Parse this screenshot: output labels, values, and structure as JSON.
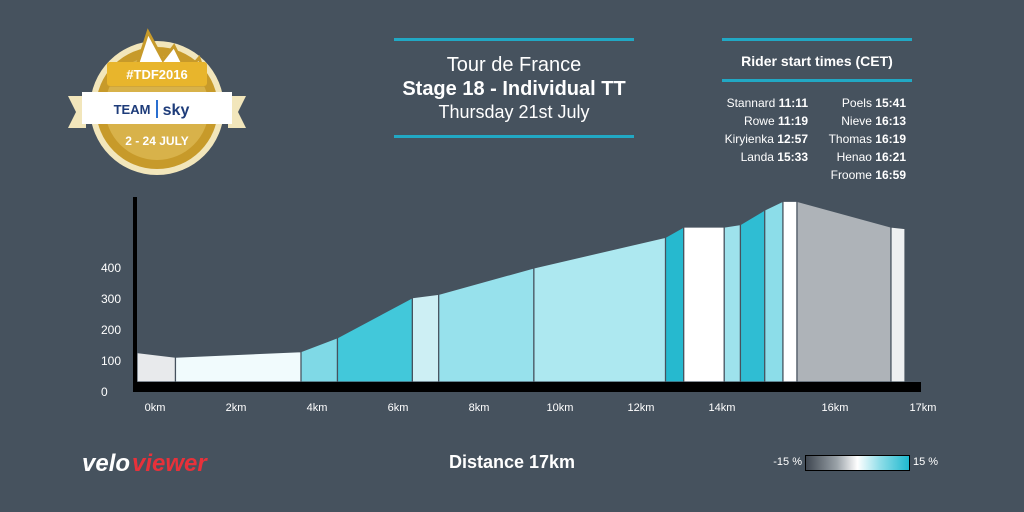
{
  "badge": {
    "hashtag": "#TDF2016",
    "team": "TEAM",
    "brand": "sky",
    "dates": "2 - 24 JULY"
  },
  "header": {
    "title": "Tour de France",
    "stage": "Stage 18 - Individual TT",
    "date": "Thursday 21st July"
  },
  "start_times": {
    "title": "Rider start times (CET)",
    "left": [
      {
        "rider": "Stannard",
        "time": "11:11"
      },
      {
        "rider": "Rowe",
        "time": "11:19"
      },
      {
        "rider": "Kiryienka",
        "time": "12:57"
      },
      {
        "rider": "Landa",
        "time": "15:33"
      }
    ],
    "right": [
      {
        "rider": "Poels",
        "time": "15:41"
      },
      {
        "rider": "Nieve",
        "time": "16:13"
      },
      {
        "rider": "Thomas",
        "time": "16:19"
      },
      {
        "rider": "Henao",
        "time": "16:21"
      },
      {
        "rider": "Froome",
        "time": "16:59"
      }
    ]
  },
  "logo": {
    "part1": "velo",
    "part2": "viewer"
  },
  "distance_label": "Distance 17km",
  "legend": {
    "min": "-15 %",
    "max": "15 %"
  },
  "colors": {
    "background": "#46525e",
    "accent": "#21a8c4",
    "logo_red": "#e8313a"
  },
  "chart_data": {
    "type": "area",
    "title": "",
    "xlabel": "",
    "ylabel": "",
    "x_unit": "km",
    "xlim": [
      0,
      17
    ],
    "ylim": [
      0,
      470
    ],
    "x_ticks": [
      0,
      2,
      4,
      6,
      8,
      10,
      12,
      14,
      16,
      17
    ],
    "x_tick_labels": [
      "0km",
      "2km",
      "4km",
      "6km",
      "8km",
      "10km",
      "12km",
      "14km",
      "16km",
      "17km"
    ],
    "y_ticks": [
      0,
      100,
      200,
      300,
      400
    ],
    "y_tick_labels": [
      "0",
      "100",
      "200",
      "300",
      "400"
    ],
    "gradient_scale": {
      "min_percent": -15,
      "max_percent": 15
    },
    "segments": [
      {
        "x0": 0.0,
        "x1": 0.95,
        "y0": 95,
        "y1": 80,
        "color": "#e8eaec"
      },
      {
        "x0": 0.95,
        "x1": 4.05,
        "y0": 80,
        "y1": 98,
        "color": "#f1fbfd"
      },
      {
        "x0": 4.05,
        "x1": 4.95,
        "y0": 98,
        "y1": 143,
        "color": "#7fd9e6"
      },
      {
        "x0": 4.95,
        "x1": 6.8,
        "y0": 143,
        "y1": 272,
        "color": "#42c8da"
      },
      {
        "x0": 6.8,
        "x1": 7.45,
        "y0": 272,
        "y1": 283,
        "color": "#cdeff4"
      },
      {
        "x0": 7.45,
        "x1": 9.8,
        "y0": 283,
        "y1": 368,
        "color": "#97e1ec"
      },
      {
        "x0": 9.8,
        "x1": 13.05,
        "y0": 368,
        "y1": 467,
        "color": "#ade8f0"
      },
      {
        "x0": 13.05,
        "x1": 13.5,
        "y0": 467,
        "y1": 500,
        "color": "#26b9cf"
      },
      {
        "x0": 13.5,
        "x1": 14.5,
        "y0": 500,
        "y1": 500,
        "color": "#ffffff"
      },
      {
        "x0": 14.5,
        "x1": 14.9,
        "y0": 500,
        "y1": 508,
        "color": "#9ee2ec"
      },
      {
        "x0": 14.9,
        "x1": 15.5,
        "y0": 508,
        "y1": 555,
        "color": "#2fbdd3"
      },
      {
        "x0": 15.5,
        "x1": 15.95,
        "y0": 555,
        "y1": 583,
        "color": "#8cdde9"
      },
      {
        "x0": 15.95,
        "x1": 16.3,
        "y0": 583,
        "y1": 583,
        "color": "#ffffff"
      },
      {
        "x0": 16.3,
        "x1": 18.65,
        "y0": 583,
        "y1": 500,
        "color": "#aeb3b8"
      },
      {
        "x0": 18.65,
        "x1": 19.0,
        "y0": 500,
        "y1": 495,
        "color": "#eef0f1"
      }
    ]
  }
}
